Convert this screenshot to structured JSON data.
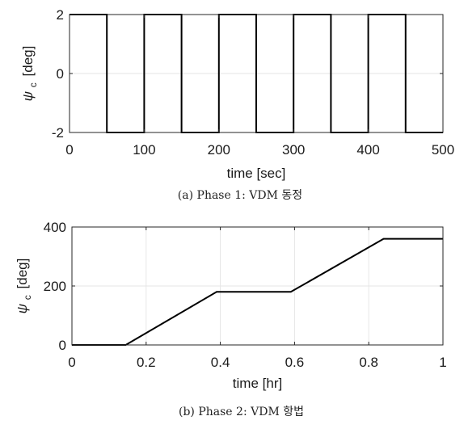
{
  "chart_data": [
    {
      "type": "line",
      "caption": "(a) Phase 1: VDM 동정",
      "xlabel": "time [sec]",
      "ylabel_symbol": "ψ",
      "ylabel_sub": "c",
      "ylabel_unit": "[deg]",
      "xlim": [
        0,
        500
      ],
      "ylim": [
        -2,
        2
      ],
      "xticks": [
        0,
        100,
        200,
        300,
        400,
        500
      ],
      "xtick_labels": [
        "0",
        "100",
        "200",
        "300",
        "400",
        "500"
      ],
      "yticks": [
        -2,
        0,
        2
      ],
      "ytick_labels": [
        "-2",
        "0",
        "2"
      ],
      "grid": true,
      "series": [
        {
          "color": "#000000",
          "x": [
            0,
            50,
            50,
            100,
            100,
            150,
            150,
            200,
            200,
            250,
            250,
            300,
            300,
            350,
            350,
            400,
            400,
            450,
            450,
            500
          ],
          "y": [
            2,
            2,
            -2,
            -2,
            2,
            2,
            -2,
            -2,
            2,
            2,
            -2,
            -2,
            2,
            2,
            -2,
            -2,
            2,
            2,
            -2,
            -2
          ]
        }
      ]
    },
    {
      "type": "line",
      "caption": "(b) Phase 2: VDM 항법",
      "xlabel": "time [hr]",
      "ylabel_symbol": "ψ",
      "ylabel_sub": "c",
      "ylabel_unit": "[deg]",
      "xlim": [
        0,
        1
      ],
      "ylim": [
        0,
        400
      ],
      "xticks": [
        0,
        0.2,
        0.4,
        0.6,
        0.8,
        1
      ],
      "xtick_labels": [
        "0",
        "0.2",
        "0.4",
        "0.6",
        "0.8",
        "1"
      ],
      "yticks": [
        0,
        200,
        400
      ],
      "ytick_labels": [
        "0",
        "200",
        "400"
      ],
      "grid": true,
      "series": [
        {
          "color": "#000000",
          "x": [
            0,
            0.145,
            0.39,
            0.59,
            0.84,
            1.0
          ],
          "y": [
            0,
            0,
            180,
            180,
            360,
            360
          ]
        }
      ]
    }
  ]
}
